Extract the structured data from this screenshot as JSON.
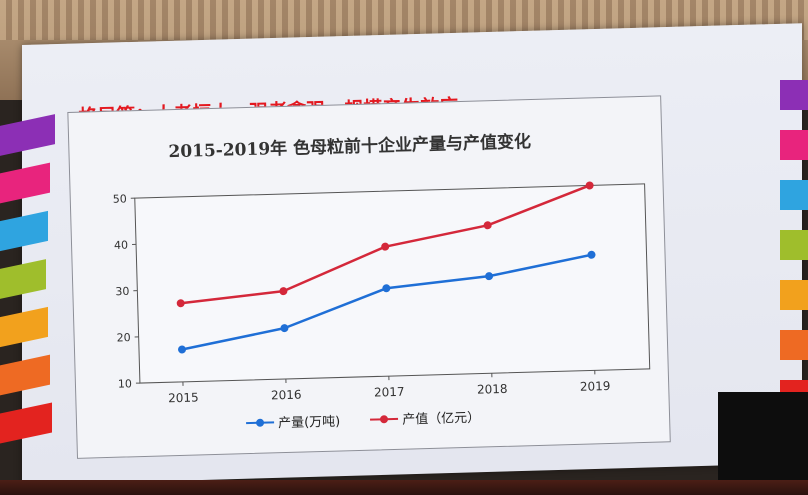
{
  "slide": {
    "title": "格局篇：大者恒大，强者愈强，规模产生效应"
  },
  "colors": {
    "title_red": "#e3181f",
    "series_output": "#1f6fd6",
    "series_value": "#d4283a"
  },
  "chart_data": {
    "type": "line",
    "title": "2015-2019年 色母粒前十企业产量与产值变化",
    "xlabel": "",
    "ylabel": "",
    "categories": [
      "2015",
      "2016",
      "2017",
      "2018",
      "2019"
    ],
    "ylim": [
      10,
      50
    ],
    "yticks": [
      "10",
      "20",
      "30",
      "40",
      "50"
    ],
    "grid": false,
    "legend_position": "bottom",
    "series": [
      {
        "name": "产量(万吨)",
        "values": [
          17,
          21,
          29,
          31,
          35
        ],
        "color": "#1f6fd6"
      },
      {
        "name": "产值（亿元）",
        "values": [
          27,
          29,
          38,
          42,
          50
        ],
        "color": "#d4283a"
      }
    ]
  }
}
